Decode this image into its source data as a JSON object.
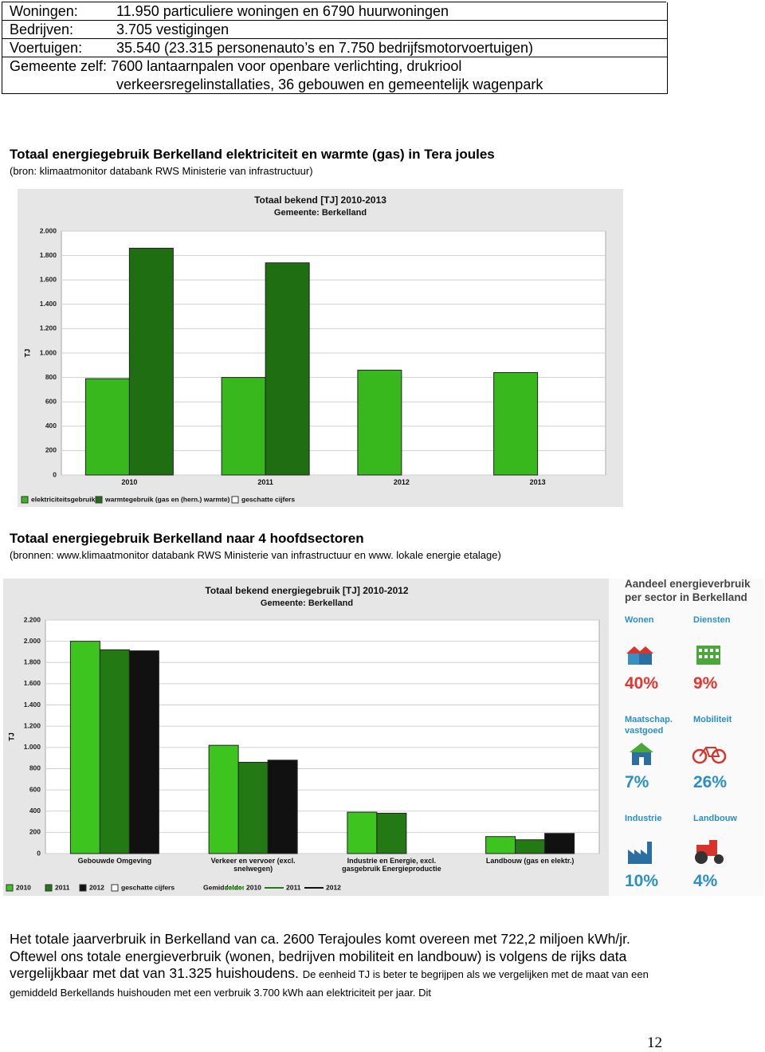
{
  "info_table": {
    "rows": [
      [
        "Woningen:",
        "11.950 particuliere woningen en 6790 huurwoningen"
      ],
      [
        "Bedrijven:",
        "3.705 vestigingen"
      ],
      [
        "Voertuigen:",
        "35.540  (23.315 personenauto’s en 7.750 bedrijfsmotorvoertuigen)"
      ],
      [
        "Gemeente zelf: 7600 lantaarnpalen voor openbare verlichting, drukriool",
        "verkeersregelinstallaties, 36 gebouwen en gemeentelijk wagenpark"
      ]
    ]
  },
  "section1": {
    "heading": "Totaal energiegebruik Berkelland elektriciteit en warmte (gas) in Tera joules",
    "source": "(bron: klimaatmonitor databank RWS Ministerie van infrastructuur)"
  },
  "section2": {
    "heading": "Totaal energiegebruik Berkelland naar 4 hoofdsectoren",
    "source": "(bronnen: www.klimaatmonitor databank RWS Ministerie van infrastructuur en www. lokale energie etalage)"
  },
  "infographic": {
    "title": "Aandeel energieverbruik per sector in Berkelland",
    "items": [
      {
        "label": "Wonen",
        "share": "40%"
      },
      {
        "label": "Diensten",
        "share": "9%"
      },
      {
        "label": "Maatschap. vastgoed",
        "share": "7%"
      },
      {
        "label": "Mobiliteit",
        "share": "26%"
      },
      {
        "label": "Industrie",
        "share": "10%"
      },
      {
        "label": "Landbouw",
        "share": "4%"
      }
    ]
  },
  "paragraph": {
    "main": "Het totale jaarverbruik in Berkelland van ca. 2600 Terajoules komt overeen met 722,2 miljoen kWh/jr. Oftewel ons totale energieverbruik  (wonen, bedrijven mobiliteit en landbouw) is volgens de rijks data vergelijkbaar met dat van 31.325 huishoudens.",
    "small": "De eenheid TJ is beter  te begrijpen als we vergelijken met de maat van een gemiddeld Berkellands huishouden met een verbruik 3.700 kWh aan elektriciteit per jaar. Dit"
  },
  "page_number": "12",
  "chart_data": [
    {
      "type": "bar",
      "title": "Totaal bekend [TJ] 2010-2013",
      "subtitle": "Gemeente: Berkelland",
      "y_label": "TJ",
      "categories": [
        "2010",
        "2011",
        "2012",
        "2013"
      ],
      "series": [
        {
          "name": "elektriciteitsgebruik",
          "color": "#38b81c",
          "values": [
            790,
            800,
            860,
            840
          ]
        },
        {
          "name": "warmtegebruik (gas en (hern.) warmte)",
          "color": "#1f6f12",
          "values": [
            1860,
            1740,
            null,
            null
          ]
        },
        {
          "name": "geschatte cijfers",
          "color": "#ffffff",
          "values": [
            null,
            null,
            null,
            null
          ]
        }
      ],
      "ylim": [
        0,
        2000
      ],
      "yticks": [
        0,
        200,
        400,
        600,
        800,
        {
          "value": 1000,
          "label": "1.000"
        },
        {
          "value": 1200,
          "label": "1.200"
        },
        {
          "value": 1400,
          "label": "1.400"
        },
        {
          "value": 1600,
          "label": "1.600"
        },
        {
          "value": 1800,
          "label": "1.800"
        },
        {
          "value": 2000,
          "label": "2.000"
        }
      ],
      "grid": true
    },
    {
      "type": "bar",
      "title": "Totaal bekend energiegebruik [TJ] 2010-2012",
      "subtitle": "Gemeente: Berkelland",
      "y_label": "TJ",
      "categories": [
        "Gebouwde Omgeving",
        "Verkeer en vervoer (excl. snelwegen)",
        "Industrie en Energie, excl. gasgebruik Energieproductie",
        "Landbouw (gas en elektr.)"
      ],
      "series": [
        {
          "name": "2010",
          "color": "#3ec41e",
          "values": [
            2000,
            1020,
            390,
            160
          ]
        },
        {
          "name": "2011",
          "color": "#237a14",
          "values": [
            1920,
            860,
            380,
            130
          ]
        },
        {
          "name": "2012",
          "color": "#111111",
          "values": [
            1910,
            880,
            null,
            190
          ]
        }
      ],
      "estimated_label": "geschatte cijfers",
      "average_label": "Gemiddelde:",
      "ylim": [
        0,
        2200
      ],
      "yticks": [
        0,
        200,
        400,
        600,
        800,
        {
          "value": 1000,
          "label": "1.000"
        },
        {
          "value": 1200,
          "label": "1.200"
        },
        {
          "value": 1400,
          "label": "1.400"
        },
        {
          "value": 1600,
          "label": "1.600"
        },
        {
          "value": 1800,
          "label": "1.800"
        },
        {
          "value": 2000,
          "label": "2.000"
        },
        {
          "value": 2200,
          "label": "2.200"
        }
      ],
      "grid": true
    }
  ]
}
